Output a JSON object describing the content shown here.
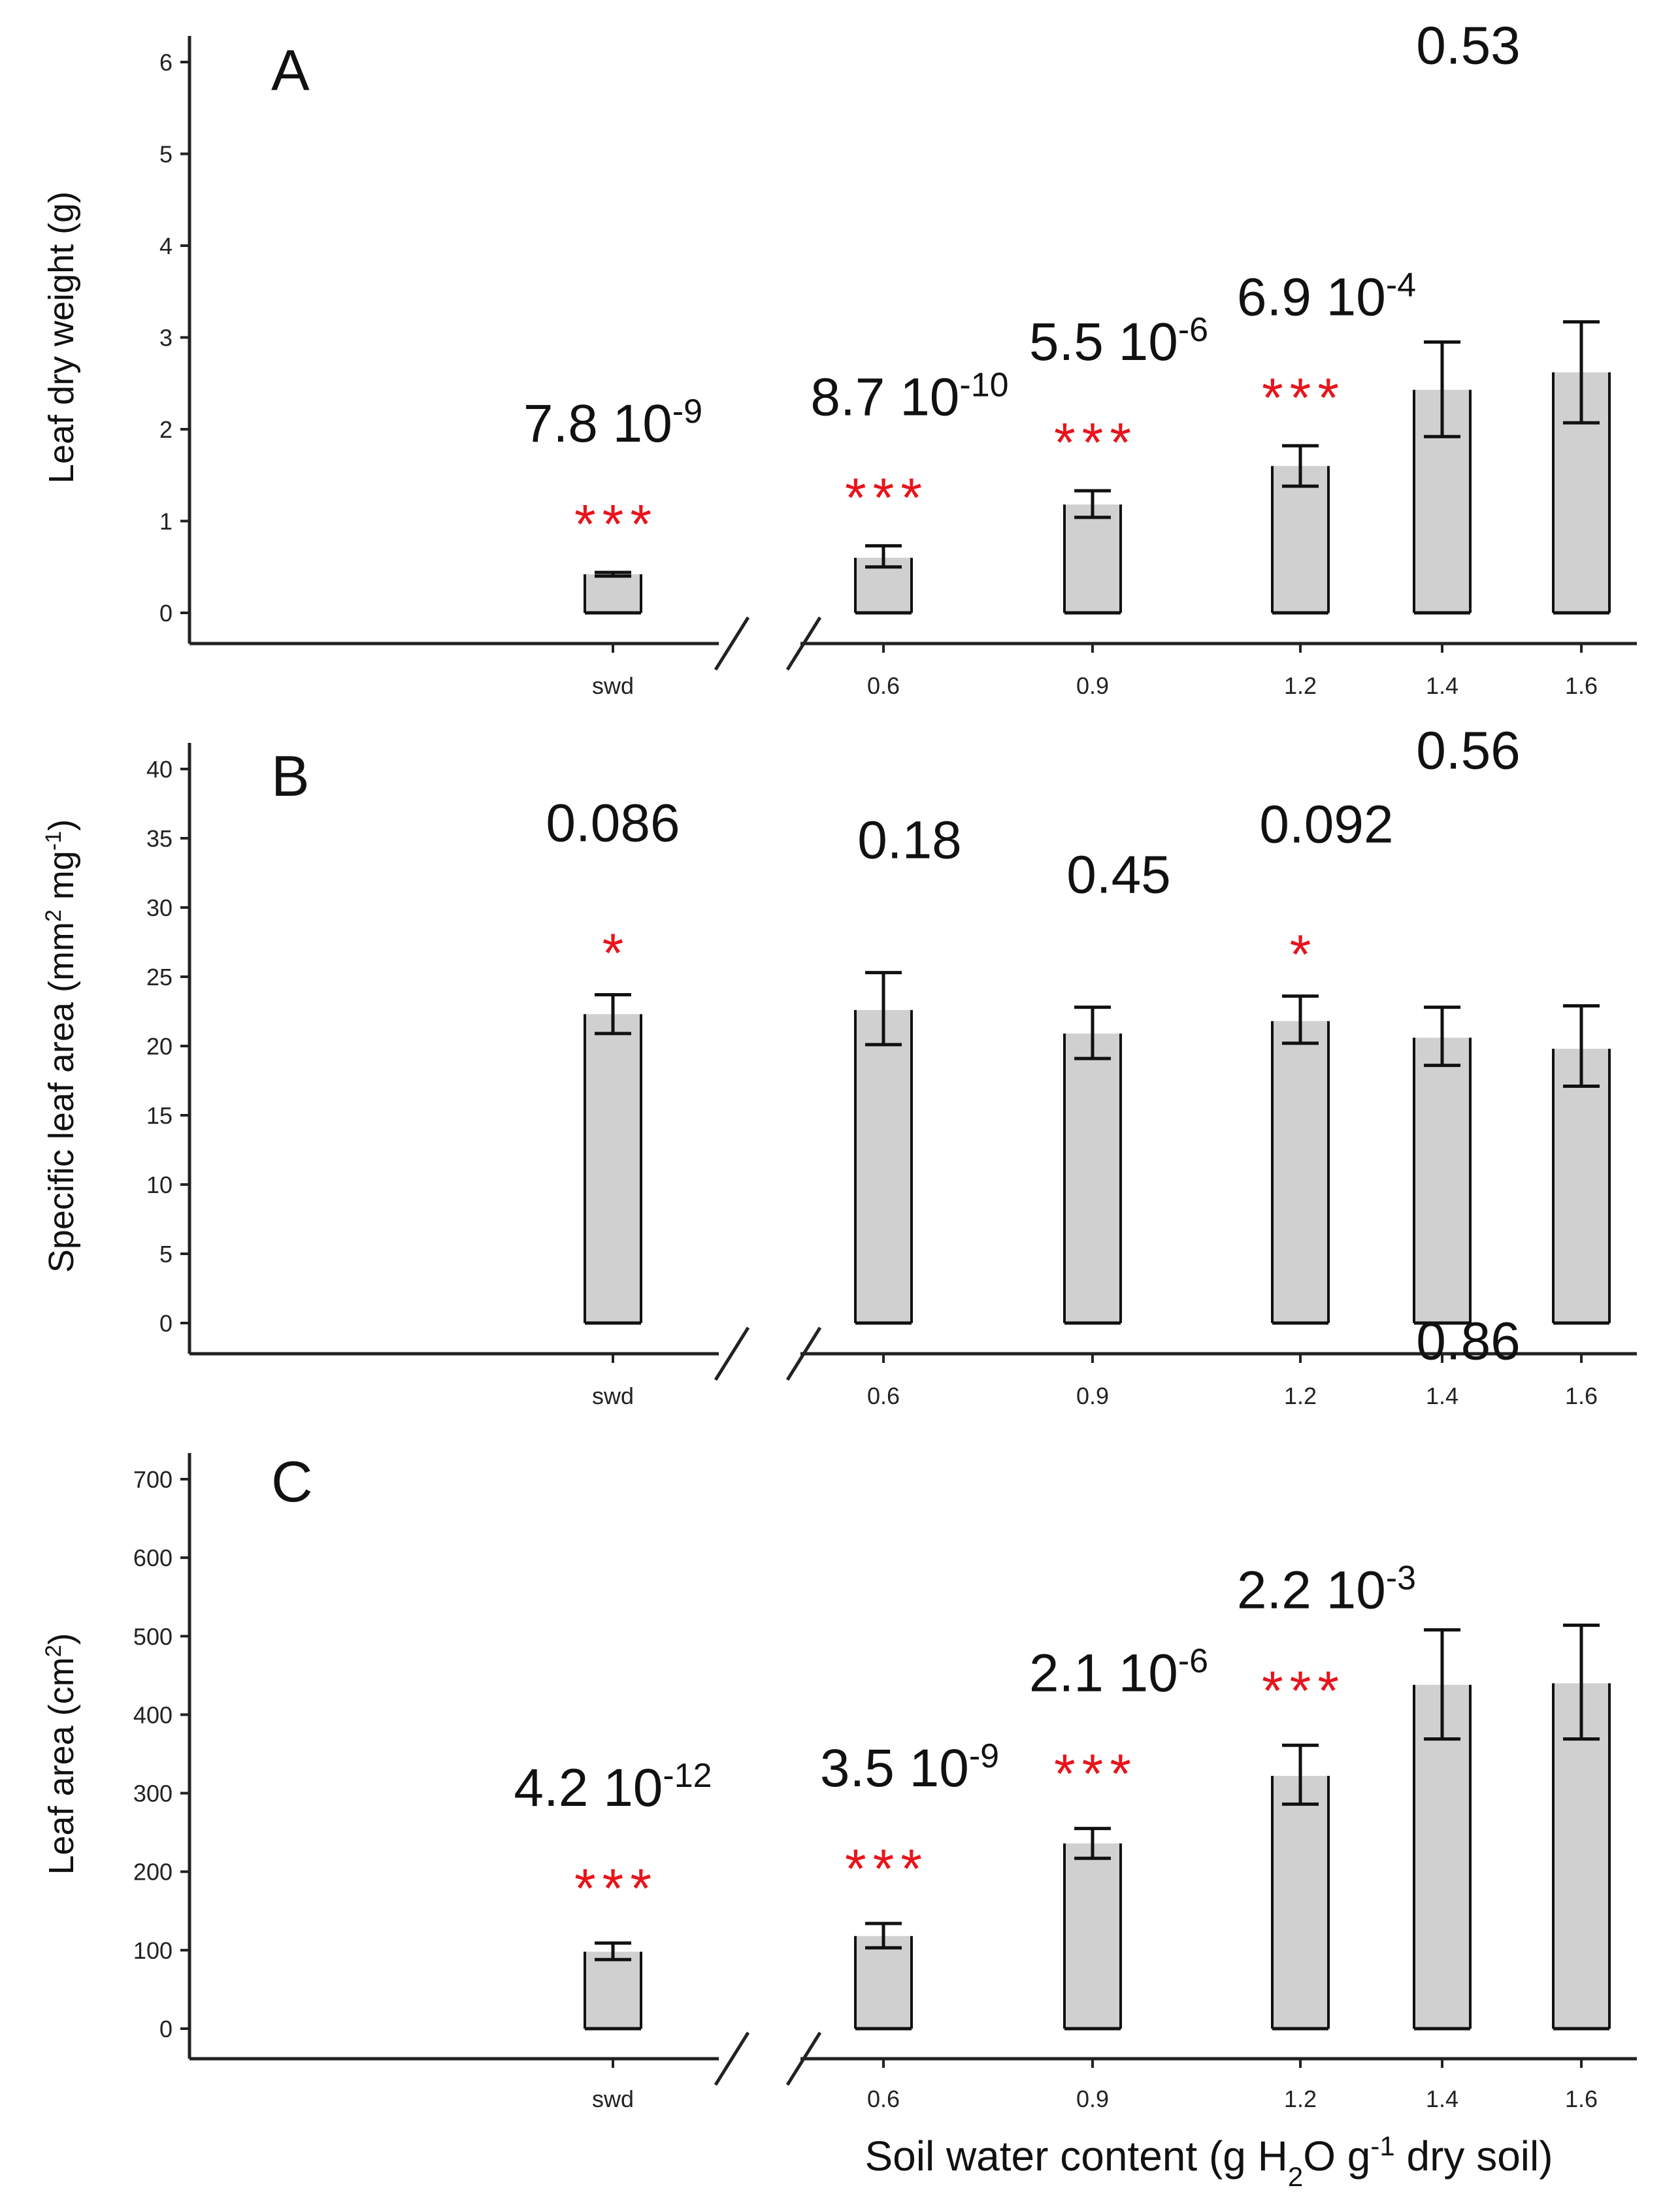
{
  "chart_data": [
    {
      "type": "bar",
      "panel_label": "A",
      "ylabel_parts": [
        "Leaf dry weight (g)"
      ],
      "ylim": [
        0,
        6
      ],
      "yticks": [
        0,
        1,
        2,
        3,
        4,
        5,
        6
      ],
      "categories": [
        "swd",
        "0.6",
        "0.9",
        "1.2",
        "1.4",
        "1.6"
      ],
      "values": [
        0.42,
        0.6,
        1.18,
        1.6,
        2.43,
        2.62
      ],
      "error_low": [
        0.4,
        0.5,
        1.04,
        1.38,
        1.92,
        2.07
      ],
      "error_high": [
        0.44,
        0.73,
        1.33,
        1.82,
        2.95,
        3.17
      ],
      "pvalues": [
        {
          "base": "7.8 10",
          "exp": "-9"
        },
        {
          "base": "8.7 10",
          "exp": "-10"
        },
        {
          "base": "5.5 10",
          "exp": "-6"
        },
        {
          "base": "6.9 10",
          "exp": "-4"
        },
        {
          "base": "0.53",
          "exp": ""
        },
        null
      ],
      "significance": [
        "***",
        "***",
        "***",
        "***",
        "",
        ""
      ]
    },
    {
      "type": "bar",
      "panel_label": "B",
      "ylabel_parts": [
        "Specific leaf area (mm",
        "2",
        " mg",
        "-1",
        ")"
      ],
      "ylim": [
        0,
        40
      ],
      "yticks": [
        0,
        5,
        10,
        15,
        20,
        25,
        30,
        35,
        40
      ],
      "categories": [
        "swd",
        "0.6",
        "0.9",
        "1.2",
        "1.4",
        "1.6"
      ],
      "values": [
        22.3,
        22.6,
        20.9,
        21.8,
        20.6,
        19.8
      ],
      "error_low": [
        20.9,
        20.1,
        19.1,
        20.2,
        18.6,
        17.1
      ],
      "error_high": [
        23.7,
        25.3,
        22.8,
        23.6,
        22.8,
        22.9
      ],
      "pvalues": [
        {
          "base": "0.086",
          "exp": ""
        },
        {
          "base": "0.18",
          "exp": ""
        },
        {
          "base": "0.45",
          "exp": ""
        },
        {
          "base": "0.092",
          "exp": ""
        },
        {
          "base": "0.56",
          "exp": ""
        },
        null
      ],
      "significance": [
        "*",
        "",
        "",
        "*",
        "",
        ""
      ]
    },
    {
      "type": "bar",
      "panel_label": "C",
      "ylabel_parts": [
        "Leaf area (cm",
        "2",
        ")"
      ],
      "ylim": [
        0,
        700
      ],
      "yticks": [
        0,
        100,
        200,
        300,
        400,
        500,
        600,
        700
      ],
      "categories": [
        "swd",
        "0.6",
        "0.9",
        "1.2",
        "1.4",
        "1.6"
      ],
      "values": [
        98,
        118,
        236,
        322,
        438,
        440
      ],
      "error_low": [
        88,
        103,
        217,
        286,
        369,
        369
      ],
      "error_high": [
        109,
        134,
        255,
        361,
        508,
        514
      ],
      "pvalues": [
        {
          "base": "4.2 10",
          "exp": "-12"
        },
        {
          "base": "3.5 10",
          "exp": "-9"
        },
        {
          "base": "2.1 10",
          "exp": "-6"
        },
        {
          "base": "2.2 10",
          "exp": "-3"
        },
        {
          "base": "0.86",
          "exp": ""
        },
        null
      ],
      "significance": [
        "***",
        "***",
        "***",
        "***",
        "",
        ""
      ]
    }
  ],
  "xlabel_parts": [
    "Soil water content (g H",
    "2",
    "O g",
    "-1",
    " dry soil)"
  ],
  "colors": {
    "bar_fill": "#d0d0d0",
    "bar_stroke": "#111111",
    "significance": "#e8141b",
    "axis": "#222222"
  }
}
